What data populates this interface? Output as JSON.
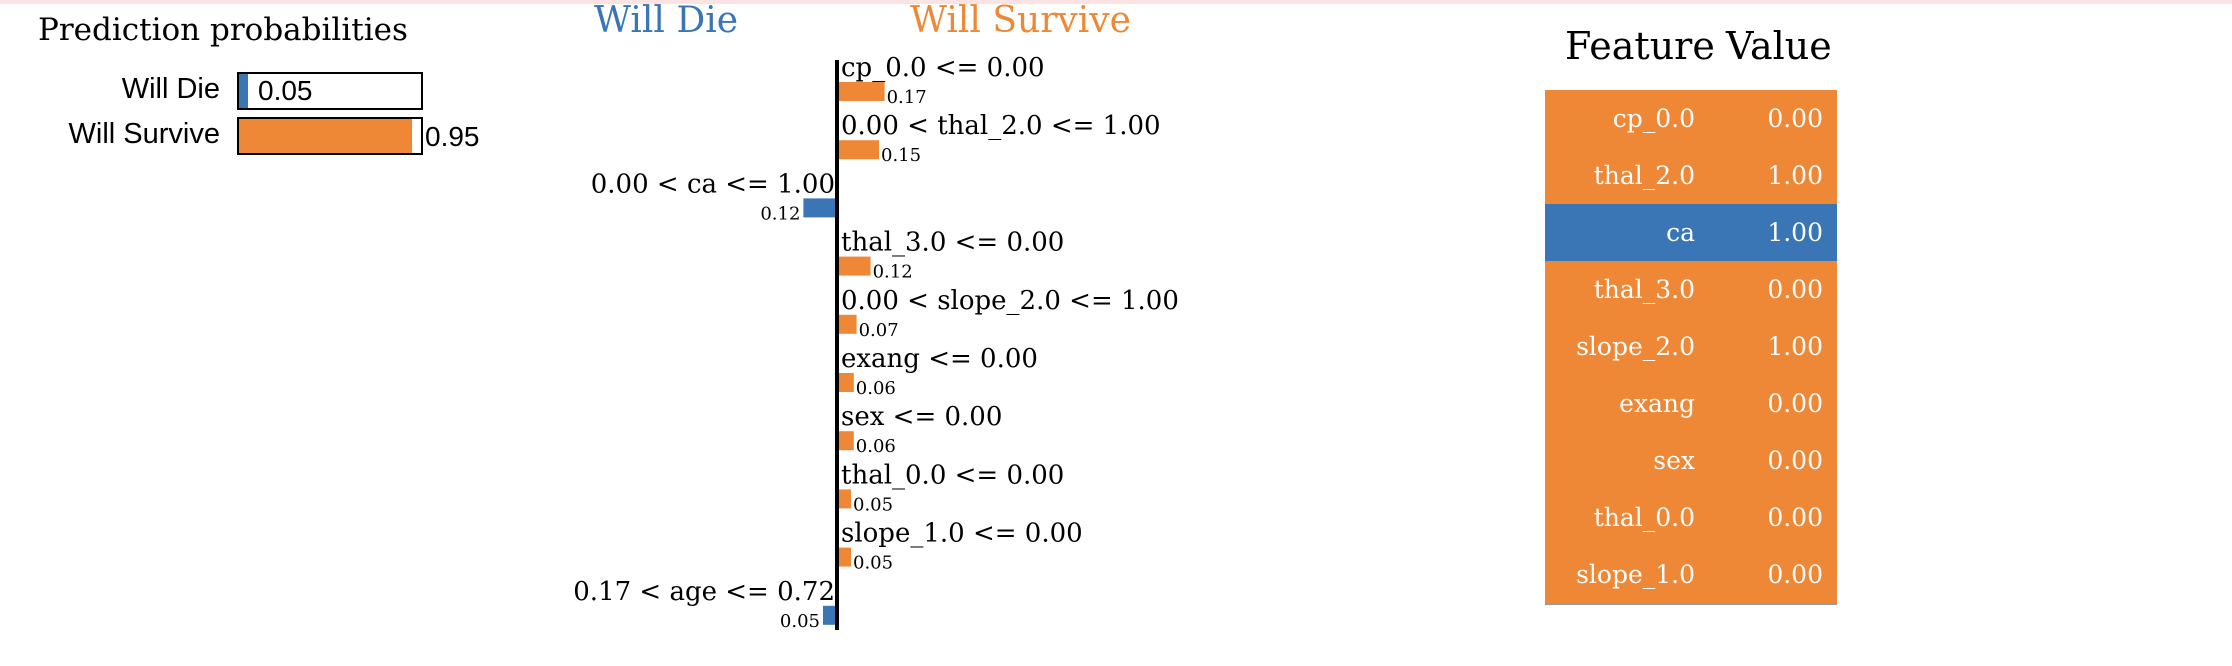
{
  "colors": {
    "die": "#3a76b5",
    "survive": "#ef8836"
  },
  "prediction": {
    "title": "Prediction probabilities",
    "rows": [
      {
        "label": "Will Die",
        "value": 0.05,
        "text": "0.05",
        "color": "#3a76b5"
      },
      {
        "label": "Will Survive",
        "value": 0.95,
        "text": "0.95",
        "color": "#ef8836"
      }
    ]
  },
  "chart_data": {
    "type": "bar",
    "orientation": "horizontal",
    "legend": [
      "Will Die",
      "Will Survive"
    ],
    "categories": [
      "cp_0.0 <= 0.00",
      "0.00 < thal_2.0 <= 1.00",
      "0.00 < ca <= 1.00",
      "thal_3.0 <= 0.00",
      "0.00 < slope_2.0 <= 1.00",
      "exang <= 0.00",
      "sex <= 0.00",
      "thal_0.0 <= 0.00",
      "slope_1.0 <= 0.00",
      "0.17 < age <= 0.72"
    ],
    "values": [
      0.17,
      0.15,
      -0.12,
      0.12,
      0.07,
      0.06,
      0.06,
      0.05,
      0.05,
      -0.05
    ],
    "value_labels": [
      "0.17",
      "0.15",
      "0.12",
      "0.12",
      "0.07",
      "0.06",
      "0.06",
      "0.05",
      "0.05",
      "0.05"
    ],
    "class": [
      "Will Survive",
      "Will Survive",
      "Will Die",
      "Will Survive",
      "Will Survive",
      "Will Survive",
      "Will Survive",
      "Will Survive",
      "Will Survive",
      "Will Die"
    ]
  },
  "table": {
    "headers": [
      "Feature",
      "Value"
    ],
    "rows": [
      {
        "feature": "cp_0.0",
        "value": "0.00",
        "class": "survive"
      },
      {
        "feature": "thal_2.0",
        "value": "1.00",
        "class": "survive"
      },
      {
        "feature": "ca",
        "value": "1.00",
        "class": "die"
      },
      {
        "feature": "thal_3.0",
        "value": "0.00",
        "class": "survive"
      },
      {
        "feature": "slope_2.0",
        "value": "1.00",
        "class": "survive"
      },
      {
        "feature": "exang",
        "value": "0.00",
        "class": "survive"
      },
      {
        "feature": "sex",
        "value": "0.00",
        "class": "survive"
      },
      {
        "feature": "thal_0.0",
        "value": "0.00",
        "class": "survive"
      },
      {
        "feature": "slope_1.0",
        "value": "0.00",
        "class": "survive"
      }
    ]
  }
}
